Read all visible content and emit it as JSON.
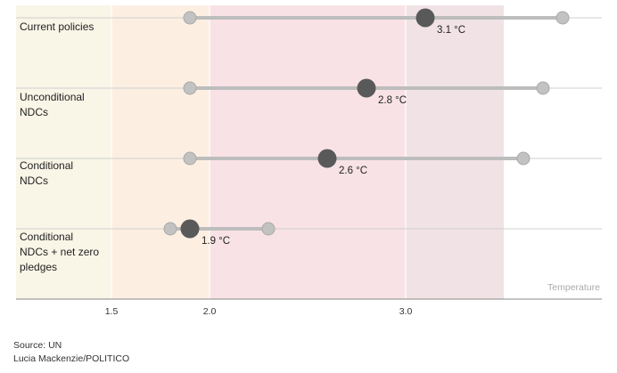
{
  "chart_data": {
    "type": "range-dot",
    "x_axis": {
      "label": "Temperature",
      "ticks": [
        1.5,
        2.0,
        3.0
      ],
      "tick_labels": [
        "1.5",
        "2.0",
        "3.0"
      ],
      "range": [
        1.0,
        3.5
      ]
    },
    "bands": [
      {
        "from": 1.0,
        "to": 1.5,
        "color": "#f9f5e7"
      },
      {
        "from": 1.5,
        "to": 2.0,
        "color": "#fcefe2"
      },
      {
        "from": 2.0,
        "to": 3.0,
        "color": "#f8e2e6"
      },
      {
        "from": 3.0,
        "to": 3.5,
        "color": "#f1e3e5"
      }
    ],
    "series": [
      {
        "label": "Current policies",
        "low": 1.9,
        "central": 3.1,
        "high": 3.8,
        "value_label": "3.1 °C"
      },
      {
        "label": "Unconditional NDCs",
        "low": 1.9,
        "central": 2.8,
        "high": 3.7,
        "value_label": "2.8 °C"
      },
      {
        "label": "Conditional NDCs",
        "low": 1.9,
        "central": 2.6,
        "high": 3.6,
        "value_label": "2.6 °C"
      },
      {
        "label": "Conditional NDCs + net zero pledges",
        "low": 1.8,
        "central": 1.9,
        "high": 2.3,
        "value_label": "1.9 °C"
      }
    ],
    "colors": {
      "range_line": "#bdbdbd",
      "endpoint": "#c2c2c2",
      "central": "#595959",
      "axis": "#888888"
    }
  },
  "footer": {
    "source": "Source: UN",
    "credit": "Lucia Mackenzie/POLITICO"
  }
}
